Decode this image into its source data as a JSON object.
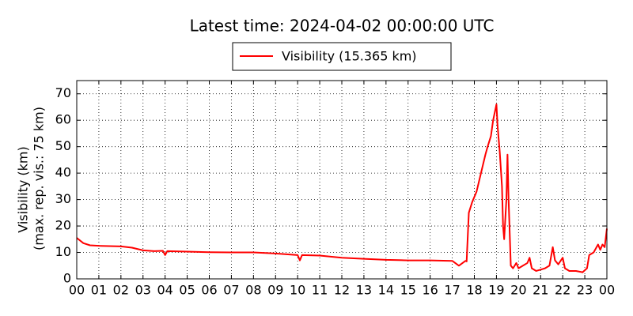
{
  "chart_data": {
    "type": "line",
    "title": "Latest time: 2024-04-02 00:00:00 UTC",
    "y_label": [
      "Visibility (km)",
      "(max. rep. vis.: 75 km)"
    ],
    "legend": "top",
    "grid": true,
    "xlim": [
      0,
      24
    ],
    "ylim": [
      0,
      75
    ],
    "yticks": [
      0,
      10,
      20,
      30,
      40,
      50,
      60,
      70
    ],
    "xticks": [
      {
        "value": 0,
        "label": "00"
      },
      {
        "value": 1,
        "label": "01"
      },
      {
        "value": 2,
        "label": "02"
      },
      {
        "value": 3,
        "label": "03"
      },
      {
        "value": 4,
        "label": "04"
      },
      {
        "value": 5,
        "label": "05"
      },
      {
        "value": 6,
        "label": "06"
      },
      {
        "value": 7,
        "label": "07"
      },
      {
        "value": 8,
        "label": "08"
      },
      {
        "value": 9,
        "label": "09"
      },
      10,
      11,
      12,
      13,
      14,
      15,
      16,
      17,
      18,
      19,
      20,
      21,
      22,
      23,
      {
        "value": 24,
        "label": "00"
      }
    ],
    "series": [
      {
        "name": "Visibility (15.365 km)",
        "color": "#ff0000",
        "x": [
          0,
          0.3,
          0.6,
          1,
          2,
          2.5,
          3,
          3.5,
          3.9,
          4,
          4.1,
          5,
          6,
          7,
          8,
          9,
          9.5,
          10,
          10.1,
          10.2,
          11,
          12,
          13,
          14,
          15,
          16,
          17,
          17.3,
          17.6,
          17.65,
          17.75,
          17.9,
          18.1,
          18.3,
          18.5,
          18.6,
          18.75,
          18.85,
          18.95,
          19.0,
          19.05,
          19.15,
          19.25,
          19.3,
          19.35,
          19.45,
          19.5,
          19.55,
          19.65,
          19.75,
          19.9,
          20.0,
          20.2,
          20.4,
          20.5,
          20.6,
          20.8,
          21.0,
          21.2,
          21.4,
          21.55,
          21.65,
          21.8,
          22.0,
          22.1,
          22.3,
          22.6,
          22.9,
          23.1,
          23.2,
          23.4,
          23.6,
          23.7,
          23.8,
          23.9,
          24.0
        ],
        "values": [
          15.5,
          13.5,
          12.7,
          12.5,
          12.3,
          11.8,
          10.8,
          10.5,
          10.6,
          9,
          10.5,
          10.3,
          10.1,
          10.0,
          10.0,
          9.6,
          9.3,
          9.0,
          7,
          9.0,
          8.8,
          8.0,
          7.6,
          7.2,
          7.0,
          7.0,
          6.8,
          5,
          6.8,
          6.6,
          25,
          29,
          33,
          40,
          47,
          50,
          54,
          60,
          64,
          66,
          58,
          48,
          35,
          20,
          15,
          30,
          47,
          30,
          5,
          4,
          6,
          4,
          5,
          6,
          8,
          4,
          3,
          3.5,
          4,
          5,
          12,
          7,
          5.5,
          8,
          4,
          3,
          3,
          2.5,
          4,
          9,
          10,
          13,
          11,
          13,
          12,
          19
        ]
      }
    ]
  }
}
